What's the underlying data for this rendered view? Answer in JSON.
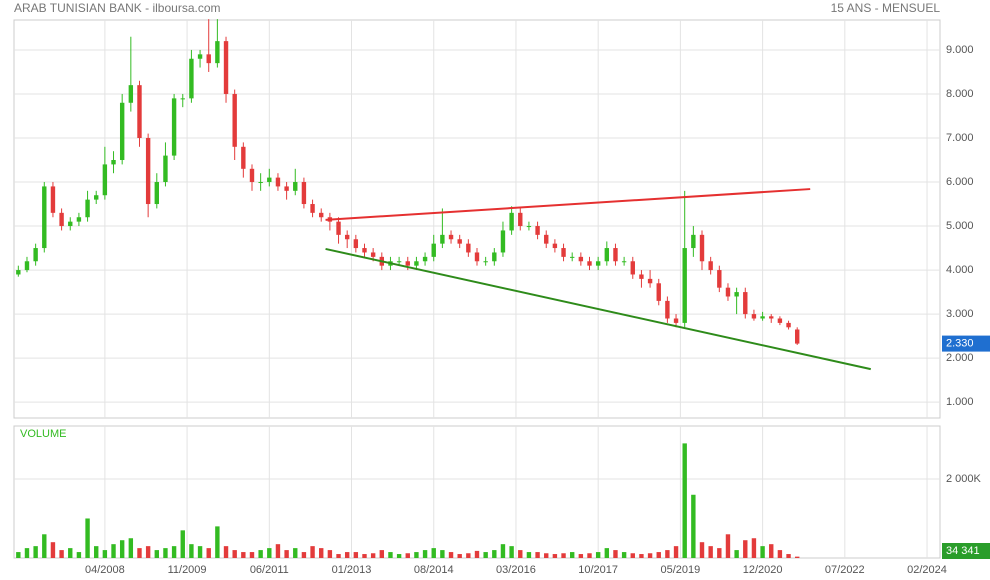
{
  "chart_data": {
    "type": "candlestick",
    "title": "ARAB TUNISIAN BANK - ilboursa.com",
    "subtitle": "15 ANS - MENSUEL",
    "volume_title": "VOLUME",
    "up_color": "#33bb22",
    "down_color": "#e33b3b",
    "grid": true,
    "xlim": [
      "07/2006",
      "05/2024"
    ],
    "xticks": [
      "04/2008",
      "11/2009",
      "06/2011",
      "01/2013",
      "08/2014",
      "03/2016",
      "10/2017",
      "05/2019",
      "12/2020",
      "07/2022",
      "02/2024"
    ],
    "ylim": [
      0.64,
      9.68
    ],
    "yticks": [
      {
        "value": 1,
        "label": "1.000"
      },
      {
        "value": 2,
        "label": "2.000"
      },
      {
        "value": 3,
        "label": "3.000"
      },
      {
        "value": 4,
        "label": "4.000"
      },
      {
        "value": 5,
        "label": "5.000"
      },
      {
        "value": 6,
        "label": "6.000"
      },
      {
        "value": 7,
        "label": "7.000"
      },
      {
        "value": 8,
        "label": "8.000"
      },
      {
        "value": 9,
        "label": "9.000"
      }
    ],
    "y2lim": [
      0,
      3340000
    ],
    "y2ticks": [
      {
        "value": 2000000,
        "label": "2 000K"
      }
    ],
    "x": [
      "08/2006",
      "10/2006",
      "12/2006",
      "02/2007",
      "04/2007",
      "06/2007",
      "08/2007",
      "10/2007",
      "12/2007",
      "02/2008",
      "04/2008",
      "06/2008",
      "08/2008",
      "10/2008",
      "12/2008",
      "02/2009",
      "04/2009",
      "06/2009",
      "08/2009",
      "10/2009",
      "12/2009",
      "02/2010",
      "04/2010",
      "06/2010",
      "08/2010",
      "10/2010",
      "12/2010",
      "02/2011",
      "04/2011",
      "06/2011",
      "08/2011",
      "10/2011",
      "12/2011",
      "02/2012",
      "04/2012",
      "06/2012",
      "08/2012",
      "10/2012",
      "12/2012",
      "02/2013",
      "04/2013",
      "06/2013",
      "08/2013",
      "10/2013",
      "12/2013",
      "02/2014",
      "04/2014",
      "06/2014",
      "08/2014",
      "10/2014",
      "12/2014",
      "02/2015",
      "04/2015",
      "06/2015",
      "08/2015",
      "10/2015",
      "12/2015",
      "02/2016",
      "04/2016",
      "06/2016",
      "08/2016",
      "10/2016",
      "12/2016",
      "02/2017",
      "04/2017",
      "06/2017",
      "08/2017",
      "10/2017",
      "12/2017",
      "02/2018",
      "04/2018",
      "06/2018",
      "08/2018",
      "10/2018",
      "12/2018",
      "02/2019",
      "04/2019",
      "06/2019",
      "08/2019",
      "10/2019",
      "12/2019",
      "02/2020",
      "04/2020",
      "06/2020",
      "08/2020",
      "10/2020",
      "12/2020",
      "02/2021",
      "04/2021",
      "06/2021",
      "08/2021"
    ],
    "open": [
      3.9,
      4.0,
      4.2,
      4.5,
      5.9,
      5.3,
      5.0,
      5.1,
      5.2,
      5.6,
      5.7,
      6.4,
      6.5,
      7.8,
      8.2,
      7.0,
      5.5,
      6.0,
      6.6,
      7.9,
      7.9,
      8.8,
      8.9,
      8.7,
      9.2,
      8.0,
      6.8,
      6.3,
      6.0,
      6.0,
      6.1,
      5.9,
      5.8,
      6.0,
      5.5,
      5.3,
      5.2,
      5.1,
      4.8,
      4.7,
      4.5,
      4.4,
      4.3,
      4.1,
      4.2,
      4.2,
      4.1,
      4.2,
      4.3,
      4.6,
      4.8,
      4.7,
      4.6,
      4.4,
      4.2,
      4.2,
      4.4,
      4.9,
      5.3,
      5.0,
      5.0,
      4.8,
      4.6,
      4.5,
      4.3,
      4.3,
      4.2,
      4.1,
      4.2,
      4.5,
      4.2,
      4.2,
      3.9,
      3.8,
      3.7,
      3.3,
      2.9,
      2.8,
      4.5,
      4.8,
      4.2,
      4.0,
      3.6,
      3.4,
      3.5,
      3.0,
      2.9,
      2.95,
      2.9,
      2.8,
      2.65
    ],
    "high": [
      4.1,
      4.3,
      4.6,
      6.0,
      6.0,
      5.4,
      5.2,
      5.3,
      5.8,
      5.8,
      6.8,
      6.7,
      8.0,
      9.3,
      8.3,
      7.1,
      6.2,
      6.9,
      8.0,
      8.0,
      9.0,
      9.0,
      9.7,
      9.7,
      9.3,
      8.1,
      6.9,
      6.4,
      6.2,
      6.3,
      6.2,
      6.0,
      6.3,
      6.1,
      5.6,
      5.4,
      5.3,
      5.2,
      4.9,
      4.8,
      4.6,
      4.5,
      4.4,
      4.3,
      4.3,
      4.3,
      4.3,
      4.4,
      4.8,
      5.4,
      4.9,
      4.8,
      4.7,
      4.5,
      4.3,
      4.5,
      5.1,
      5.45,
      5.4,
      5.1,
      5.1,
      4.9,
      4.7,
      4.6,
      4.4,
      4.4,
      4.3,
      4.3,
      4.65,
      4.6,
      4.3,
      4.3,
      4.0,
      4.0,
      3.8,
      3.4,
      3.0,
      5.8,
      5.0,
      4.9,
      4.3,
      4.1,
      3.7,
      3.6,
      3.6,
      3.1,
      3.05,
      3.0,
      2.95,
      2.85,
      2.7
    ],
    "low": [
      3.85,
      3.95,
      4.1,
      4.4,
      5.2,
      4.9,
      4.9,
      5.0,
      5.1,
      5.5,
      5.6,
      6.2,
      6.4,
      7.6,
      6.8,
      5.2,
      5.4,
      5.9,
      6.5,
      7.7,
      7.8,
      8.6,
      8.5,
      8.6,
      7.8,
      6.5,
      6.1,
      5.8,
      5.8,
      5.9,
      5.8,
      5.6,
      5.7,
      5.4,
      5.2,
      5.1,
      4.9,
      4.6,
      4.5,
      4.4,
      4.3,
      4.2,
      4.0,
      4.0,
      4.1,
      4.0,
      4.0,
      4.1,
      4.2,
      4.5,
      4.6,
      4.5,
      4.3,
      4.1,
      4.1,
      4.1,
      4.3,
      4.8,
      4.9,
      4.9,
      4.7,
      4.5,
      4.4,
      4.2,
      4.2,
      4.1,
      4.0,
      4.0,
      4.1,
      4.1,
      4.1,
      3.8,
      3.6,
      3.6,
      3.2,
      2.8,
      2.7,
      2.7,
      4.3,
      4.0,
      3.9,
      3.5,
      3.3,
      3.0,
      2.9,
      2.85,
      2.85,
      2.8,
      2.75,
      2.65,
      2.3
    ],
    "close": [
      4.0,
      4.2,
      4.5,
      5.9,
      5.3,
      5.0,
      5.1,
      5.2,
      5.6,
      5.7,
      6.4,
      6.5,
      7.8,
      8.2,
      7.0,
      5.5,
      6.0,
      6.6,
      7.9,
      7.9,
      8.8,
      8.9,
      8.7,
      9.2,
      8.0,
      6.8,
      6.3,
      6.0,
      6.0,
      6.1,
      5.9,
      5.8,
      6.0,
      5.5,
      5.3,
      5.2,
      5.1,
      4.8,
      4.7,
      4.5,
      4.4,
      4.3,
      4.1,
      4.2,
      4.2,
      4.1,
      4.2,
      4.3,
      4.6,
      4.8,
      4.7,
      4.6,
      4.4,
      4.2,
      4.2,
      4.4,
      4.9,
      5.3,
      5.0,
      5.0,
      4.8,
      4.6,
      4.5,
      4.3,
      4.3,
      4.2,
      4.1,
      4.2,
      4.5,
      4.2,
      4.2,
      3.9,
      3.8,
      3.7,
      3.3,
      2.9,
      2.8,
      4.5,
      4.8,
      4.2,
      4.0,
      3.6,
      3.4,
      3.5,
      3.0,
      2.9,
      2.95,
      2.9,
      2.8,
      2.7,
      2.33
    ],
    "volume": [
      150000,
      250000,
      300000,
      600000,
      400000,
      200000,
      250000,
      150000,
      1000000,
      300000,
      200000,
      350000,
      450000,
      500000,
      250000,
      300000,
      200000,
      250000,
      300000,
      700000,
      350000,
      300000,
      250000,
      800000,
      300000,
      200000,
      150000,
      150000,
      200000,
      250000,
      350000,
      200000,
      250000,
      150000,
      300000,
      250000,
      200000,
      100000,
      150000,
      150000,
      100000,
      120000,
      200000,
      150000,
      100000,
      120000,
      150000,
      200000,
      250000,
      200000,
      150000,
      100000,
      120000,
      180000,
      150000,
      200000,
      350000,
      300000,
      200000,
      150000,
      150000,
      120000,
      100000,
      120000,
      150000,
      100000,
      120000,
      150000,
      250000,
      200000,
      150000,
      120000,
      100000,
      120000,
      150000,
      200000,
      300000,
      2900000,
      1600000,
      400000,
      300000,
      250000,
      600000,
      200000,
      450000,
      500000,
      300000,
      350000,
      200000,
      100000,
      34341
    ],
    "close_label": "2.330",
    "volume_label": "34 341",
    "trendlines": [
      {
        "color": "#e53030",
        "x": [
          "07/2012",
          "11/2021"
        ],
        "y": [
          5.14,
          5.84
        ]
      },
      {
        "color": "#2e8b1a",
        "x": [
          "07/2012",
          "01/2023"
        ],
        "y": [
          4.48,
          1.75
        ]
      }
    ]
  }
}
